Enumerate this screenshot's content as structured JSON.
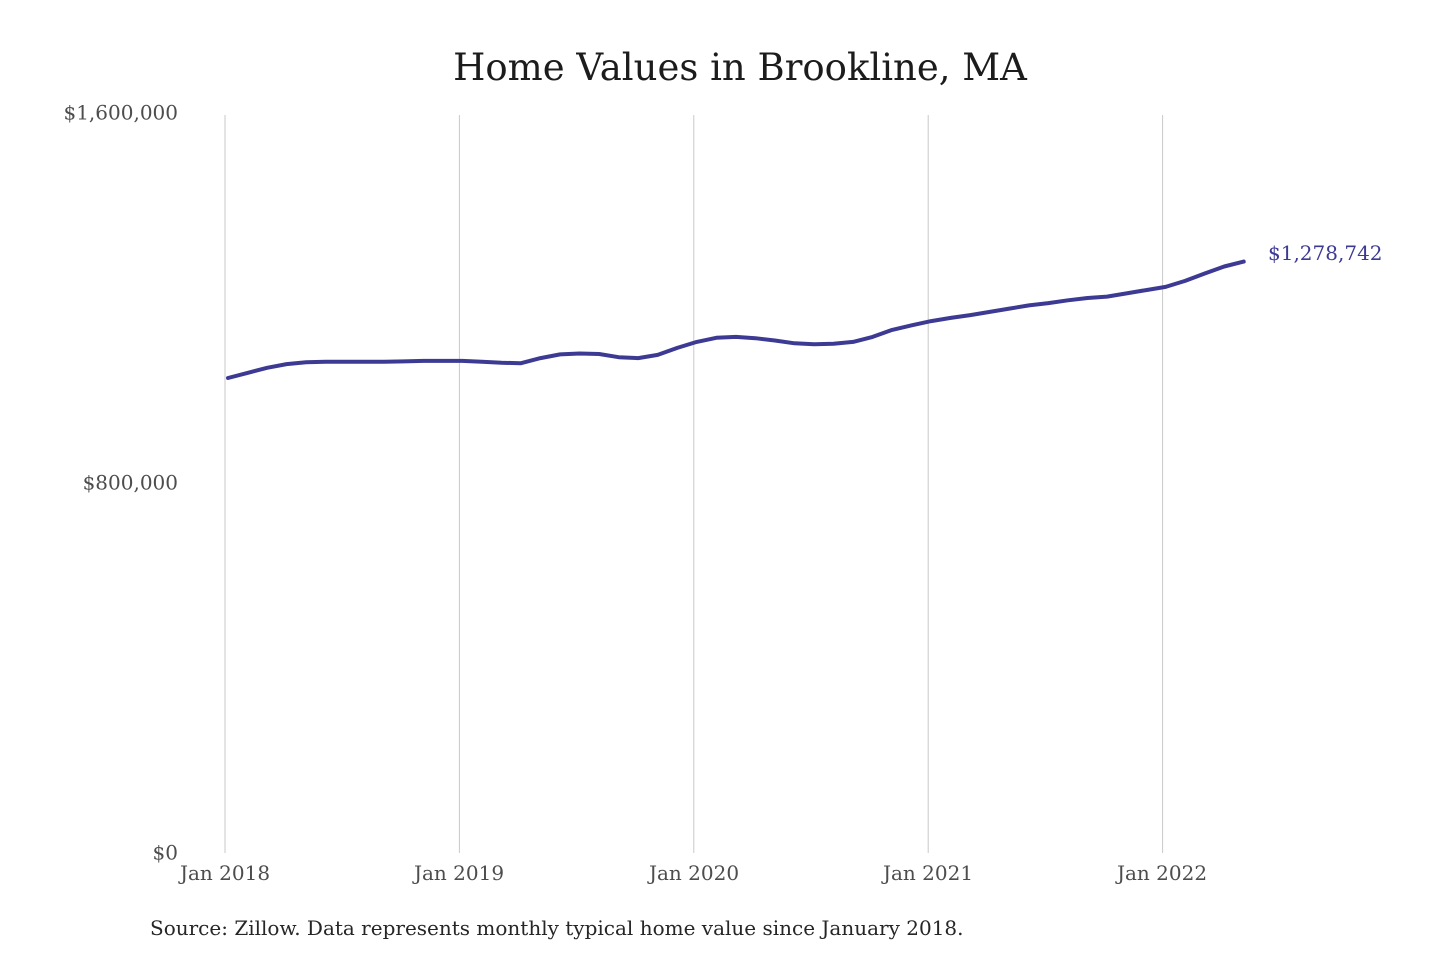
{
  "title": "Home Values in Brookline, MA",
  "source_note": "Source: Zillow. Data represents monthly typical home value since January 2018.",
  "end_label": "$1,278,742",
  "y_axis": {
    "labels": [
      "$1,600,000",
      "$800,000",
      "$0"
    ],
    "values": [
      1600000,
      800000,
      0
    ]
  },
  "x_axis": {
    "labels": [
      "Jan 2018",
      "Jan 2019",
      "Jan 2020",
      "Jan 2021",
      "Jan 2022"
    ]
  },
  "colors": {
    "line": "#3d3a94",
    "grid": "#c9c9c9",
    "axis_text": "#4d4d4d",
    "title_text": "#1c1c1c",
    "label_text": "#3d3a94",
    "source_text": "#262626",
    "background": "#ffffff"
  },
  "chart_data": {
    "type": "line",
    "title": "Home Values in Brookline, MA",
    "xlabel": "",
    "ylabel": "",
    "ylim": [
      0,
      1600000
    ],
    "y_ticks": [
      0,
      800000,
      1600000
    ],
    "x_tick_labels": [
      "Jan 2018",
      "Jan 2019",
      "Jan 2020",
      "Jan 2021",
      "Jan 2022"
    ],
    "grid": "vertical-yearly",
    "legend": "none",
    "final_value": 1278742,
    "final_value_label": "$1,278,742",
    "x": [
      "Jan 2018",
      "Feb 2018",
      "Mar 2018",
      "Apr 2018",
      "May 2018",
      "Jun 2018",
      "Jul 2018",
      "Aug 2018",
      "Sep 2018",
      "Oct 2018",
      "Nov 2018",
      "Dec 2018",
      "Jan 2019",
      "Feb 2019",
      "Mar 2019",
      "Apr 2019",
      "May 2019",
      "Jun 2019",
      "Jul 2019",
      "Aug 2019",
      "Sep 2019",
      "Oct 2019",
      "Nov 2019",
      "Dec 2019",
      "Jan 2020",
      "Feb 2020",
      "Mar 2020",
      "Apr 2020",
      "May 2020",
      "Jun 2020",
      "Jul 2020",
      "Aug 2020",
      "Sep 2020",
      "Oct 2020",
      "Nov 2020",
      "Dec 2020",
      "Jan 2021",
      "Feb 2021",
      "Mar 2021",
      "Apr 2021",
      "May 2021",
      "Jun 2021",
      "Jul 2021",
      "Aug 2021",
      "Sep 2021",
      "Oct 2021",
      "Nov 2021",
      "Dec 2021",
      "Jan 2022",
      "Feb 2022",
      "Mar 2022",
      "Apr 2022",
      "May 2022"
    ],
    "values": [
      1027000,
      1038000,
      1049000,
      1057000,
      1061000,
      1062000,
      1062000,
      1062000,
      1062000,
      1063000,
      1064000,
      1064000,
      1064000,
      1062000,
      1060000,
      1059000,
      1070000,
      1078000,
      1080000,
      1079000,
      1072000,
      1070000,
      1077000,
      1092000,
      1105000,
      1114000,
      1116000,
      1113000,
      1108000,
      1102000,
      1100000,
      1101000,
      1105000,
      1116000,
      1131000,
      1141000,
      1150000,
      1157000,
      1163000,
      1170000,
      1177000,
      1184000,
      1189000,
      1195000,
      1200000,
      1203000,
      1210000,
      1217000,
      1224000,
      1237000,
      1253000,
      1268000,
      1278742
    ]
  }
}
